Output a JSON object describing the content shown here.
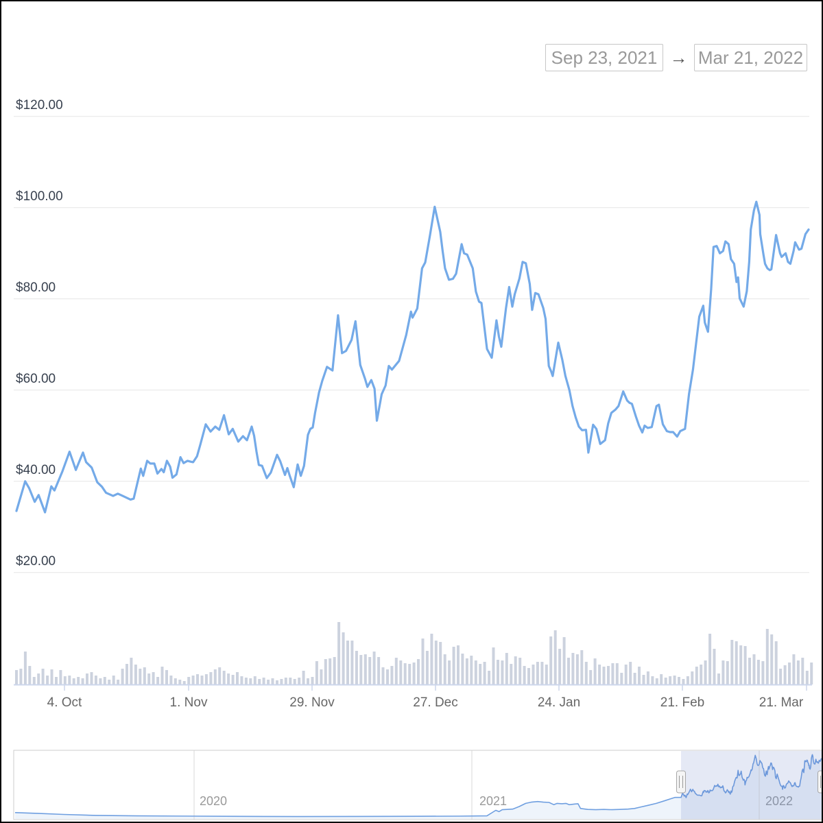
{
  "toolbar": {
    "date_from": "Sep 23, 2021",
    "date_to": "Mar 21, 2022",
    "arrow": "→"
  },
  "colors": {
    "price_line": "#74aae8",
    "volume_bar": "#ccd2de",
    "gridline": "#e6e6e6",
    "axis_line": "#ccd6eb",
    "y_label": "#37404e",
    "x_label": "#666666",
    "muted_label": "#999999",
    "nav_line": "#6f9fe0",
    "nav_area_fill": "rgba(124,168,224,0.13)",
    "nav_selection_fill": "rgba(91,119,190,0.16)",
    "handle_fill": "#f5f5f5",
    "handle_border": "#a6a6a6",
    "datebox_border": "#c6c6c6",
    "datebox_text": "#999999"
  },
  "chart_data": {
    "type": "line",
    "title": "",
    "subtitle": "",
    "legend": "none",
    "grid": "horizontal",
    "visible_range": {
      "from": "Sep 23, 2021",
      "to": "Mar 21, 2022"
    },
    "price_axis": {
      "unit": "USD",
      "tick_labels": [
        "$20.00",
        "$40.00",
        "$60.00",
        "$80.00",
        "$100.00",
        "$120.00"
      ],
      "tick_values": [
        20,
        40,
        60,
        80,
        100,
        120
      ],
      "min": 20,
      "max": 120
    },
    "x_axis": {
      "tick_labels": [
        "4. Oct",
        "1. Nov",
        "29. Nov",
        "27. Dec",
        "24. Jan",
        "21. Feb",
        "21. Mar"
      ]
    },
    "series": [
      {
        "name": "price",
        "unit": "USD",
        "note": "points are [fraction_of_visible_range, price_usd]; range Sep 23 2021 - Mar 21 2022",
        "points": [
          [
            0,
            33.5
          ],
          [
            0.011,
            40
          ],
          [
            0.016,
            38.5
          ],
          [
            0.023,
            35.5
          ],
          [
            0.028,
            37
          ],
          [
            0.036,
            33.2
          ],
          [
            0.044,
            38.9
          ],
          [
            0.048,
            38
          ],
          [
            0.058,
            42.2
          ],
          [
            0.067,
            46.5
          ],
          [
            0.075,
            42.5
          ],
          [
            0.079,
            44.2
          ],
          [
            0.084,
            46.3
          ],
          [
            0.088,
            44.2
          ],
          [
            0.095,
            43
          ],
          [
            0.102,
            39.8
          ],
          [
            0.108,
            38.8
          ],
          [
            0.113,
            37.5
          ],
          [
            0.122,
            36.8
          ],
          [
            0.128,
            37.3
          ],
          [
            0.133,
            36.9
          ],
          [
            0.144,
            36
          ],
          [
            0.148,
            36.2
          ],
          [
            0.157,
            42.8
          ],
          [
            0.16,
            41.2
          ],
          [
            0.165,
            44.5
          ],
          [
            0.169,
            43.9
          ],
          [
            0.174,
            43.9
          ],
          [
            0.178,
            41.7
          ],
          [
            0.183,
            42.7
          ],
          [
            0.186,
            42
          ],
          [
            0.19,
            44.5
          ],
          [
            0.194,
            43.2
          ],
          [
            0.197,
            40.8
          ],
          [
            0.202,
            41.5
          ],
          [
            0.207,
            45.3
          ],
          [
            0.211,
            44
          ],
          [
            0.216,
            44.5
          ],
          [
            0.22,
            44.3
          ],
          [
            0.223,
            44.2
          ],
          [
            0.228,
            45.5
          ],
          [
            0.232,
            48
          ],
          [
            0.239,
            52.5
          ],
          [
            0.245,
            50.9
          ],
          [
            0.251,
            52
          ],
          [
            0.256,
            51.3
          ],
          [
            0.262,
            54.5
          ],
          [
            0.268,
            50.3
          ],
          [
            0.273,
            51.5
          ],
          [
            0.28,
            48.7
          ],
          [
            0.286,
            49.9
          ],
          [
            0.291,
            49
          ],
          [
            0.297,
            52
          ],
          [
            0.3,
            50
          ],
          [
            0.303,
            46.5
          ],
          [
            0.306,
            43.6
          ],
          [
            0.31,
            43.4
          ],
          [
            0.316,
            40.7
          ],
          [
            0.321,
            41.9
          ],
          [
            0.329,
            45.8
          ],
          [
            0.333,
            44.4
          ],
          [
            0.339,
            41.4
          ],
          [
            0.342,
            42.9
          ],
          [
            0.345,
            41.2
          ],
          [
            0.35,
            38.7
          ],
          [
            0.355,
            43.7
          ],
          [
            0.359,
            41.2
          ],
          [
            0.363,
            43.4
          ],
          [
            0.368,
            50.2
          ],
          [
            0.371,
            51.5
          ],
          [
            0.374,
            51.8
          ],
          [
            0.377,
            55
          ],
          [
            0.382,
            59.5
          ],
          [
            0.386,
            62
          ],
          [
            0.392,
            65.1
          ],
          [
            0.399,
            64.3
          ],
          [
            0.406,
            76.4
          ],
          [
            0.411,
            68.1
          ],
          [
            0.416,
            68.6
          ],
          [
            0.423,
            71
          ],
          [
            0.428,
            75.1
          ],
          [
            0.434,
            65.5
          ],
          [
            0.44,
            62.5
          ],
          [
            0.443,
            60.7
          ],
          [
            0.448,
            62.2
          ],
          [
            0.452,
            60.3
          ],
          [
            0.455,
            53.3
          ],
          [
            0.461,
            59.1
          ],
          [
            0.466,
            61
          ],
          [
            0.47,
            65.3
          ],
          [
            0.474,
            64.5
          ],
          [
            0.483,
            66.4
          ],
          [
            0.492,
            72.1
          ],
          [
            0.498,
            77.2
          ],
          [
            0.5,
            75.9
          ],
          [
            0.506,
            77.9
          ],
          [
            0.512,
            86.7
          ],
          [
            0.516,
            88
          ],
          [
            0.522,
            93.9
          ],
          [
            0.528,
            100.2
          ],
          [
            0.535,
            94.7
          ],
          [
            0.538,
            90.5
          ],
          [
            0.541,
            86.7
          ],
          [
            0.546,
            84.2
          ],
          [
            0.551,
            84.4
          ],
          [
            0.555,
            85.5
          ],
          [
            0.562,
            92
          ],
          [
            0.565,
            90
          ],
          [
            0.569,
            89.7
          ],
          [
            0.576,
            86.7
          ],
          [
            0.58,
            81.6
          ],
          [
            0.584,
            79.4
          ],
          [
            0.587,
            79.1
          ],
          [
            0.594,
            69
          ],
          [
            0.6,
            67.1
          ],
          [
            0.606,
            75.3
          ],
          [
            0.609,
            71.8
          ],
          [
            0.612,
            69.5
          ],
          [
            0.618,
            78
          ],
          [
            0.622,
            82.6
          ],
          [
            0.626,
            78.3
          ],
          [
            0.629,
            81
          ],
          [
            0.635,
            84.5
          ],
          [
            0.639,
            88.1
          ],
          [
            0.643,
            87.8
          ],
          [
            0.648,
            83.3
          ],
          [
            0.651,
            77.6
          ],
          [
            0.655,
            81.3
          ],
          [
            0.659,
            81
          ],
          [
            0.665,
            78
          ],
          [
            0.668,
            75.6
          ],
          [
            0.672,
            65.3
          ],
          [
            0.675,
            64.1
          ],
          [
            0.677,
            63.1
          ],
          [
            0.684,
            70.4
          ],
          [
            0.689,
            66.7
          ],
          [
            0.693,
            63.1
          ],
          [
            0.698,
            60
          ],
          [
            0.702,
            56.5
          ],
          [
            0.706,
            54
          ],
          [
            0.71,
            52
          ],
          [
            0.714,
            51.2
          ],
          [
            0.719,
            51.3
          ],
          [
            0.722,
            46.3
          ],
          [
            0.728,
            52.4
          ],
          [
            0.732,
            51.5
          ],
          [
            0.737,
            48.2
          ],
          [
            0.743,
            49
          ],
          [
            0.747,
            52.7
          ],
          [
            0.751,
            55
          ],
          [
            0.756,
            55.7
          ],
          [
            0.76,
            56.5
          ],
          [
            0.766,
            59.7
          ],
          [
            0.771,
            57.7
          ],
          [
            0.774,
            57.2
          ],
          [
            0.777,
            57
          ],
          [
            0.782,
            54.2
          ],
          [
            0.786,
            52.2
          ],
          [
            0.79,
            50.7
          ],
          [
            0.793,
            52.2
          ],
          [
            0.797,
            51.7
          ],
          [
            0.802,
            51.9
          ],
          [
            0.808,
            56.5
          ],
          [
            0.811,
            56.8
          ],
          [
            0.816,
            52.5
          ],
          [
            0.821,
            51
          ],
          [
            0.825,
            50.8
          ],
          [
            0.829,
            50.8
          ],
          [
            0.834,
            49.8
          ],
          [
            0.838,
            51
          ],
          [
            0.844,
            51.5
          ],
          [
            0.849,
            59.1
          ],
          [
            0.854,
            64.5
          ],
          [
            0.858,
            70.3
          ],
          [
            0.862,
            76.1
          ],
          [
            0.867,
            78.5
          ],
          [
            0.869,
            74.8
          ],
          [
            0.873,
            72.8
          ],
          [
            0.877,
            82.1
          ],
          [
            0.88,
            91.4
          ],
          [
            0.884,
            91.6
          ],
          [
            0.888,
            90
          ],
          [
            0.892,
            90.5
          ],
          [
            0.895,
            92.6
          ],
          [
            0.899,
            92
          ],
          [
            0.902,
            88.7
          ],
          [
            0.906,
            87.7
          ],
          [
            0.909,
            83.7
          ],
          [
            0.911,
            84.7
          ],
          [
            0.913,
            80.1
          ],
          [
            0.918,
            78.3
          ],
          [
            0.922,
            81.7
          ],
          [
            0.925,
            88.1
          ],
          [
            0.927,
            95.2
          ],
          [
            0.931,
            99.4
          ],
          [
            0.934,
            101.3
          ],
          [
            0.938,
            98.4
          ],
          [
            0.939,
            94.2
          ],
          [
            0.943,
            89.7
          ],
          [
            0.945,
            87.7
          ],
          [
            0.948,
            86.7
          ],
          [
            0.951,
            86.3
          ],
          [
            0.953,
            86.5
          ],
          [
            0.959,
            94
          ],
          [
            0.964,
            90
          ],
          [
            0.966,
            89.2
          ],
          [
            0.971,
            90
          ],
          [
            0.974,
            88.1
          ],
          [
            0.977,
            87.7
          ],
          [
            0.981,
            90.5
          ],
          [
            0.983,
            92.4
          ],
          [
            0.988,
            90.8
          ],
          [
            0.991,
            91
          ],
          [
            0.996,
            94.2
          ],
          [
            1,
            95.2
          ]
        ]
      },
      {
        "name": "volume",
        "unit": "relative (no axis labels visible, 0-100 scale)",
        "values": [
          21,
          23,
          48,
          27,
          11,
          16,
          23,
          13,
          22,
          11,
          21,
          12,
          13,
          9,
          11,
          9,
          16,
          18,
          13,
          9,
          11,
          7,
          13,
          7,
          23,
          30,
          39,
          29,
          23,
          25,
          16,
          18,
          11,
          26,
          21,
          13,
          9,
          7,
          5,
          11,
          13,
          15,
          13,
          15,
          18,
          22,
          25,
          20,
          16,
          14,
          18,
          12,
          10,
          9,
          12,
          8,
          10,
          7,
          9,
          6,
          8,
          10,
          10,
          8,
          10,
          20,
          9,
          11,
          34,
          22,
          37,
          38,
          40,
          91,
          76,
          64,
          64,
          49,
          43,
          44,
          40,
          48,
          40,
          25,
          22,
          27,
          39,
          35,
          31,
          30,
          32,
          37,
          67,
          49,
          74,
          64,
          62,
          44,
          35,
          55,
          57,
          45,
          38,
          42,
          35,
          30,
          33,
          20,
          54,
          36,
          35,
          46,
          30,
          41,
          39,
          27,
          24,
          29,
          33,
          33,
          29,
          70,
          79,
          52,
          69,
          39,
          46,
          44,
          50,
          33,
          21,
          38,
          29,
          26,
          27,
          31,
          31,
          17,
          29,
          33,
          17,
          26,
          14,
          19,
          12,
          9,
          15,
          10,
          12,
          13,
          11,
          8,
          12,
          19,
          26,
          29,
          35,
          74,
          52,
          16,
          35,
          34,
          65,
          63,
          57,
          56,
          39,
          44,
          36,
          34,
          81,
          73,
          63,
          23,
          28,
          32,
          44,
          35,
          39,
          20,
          32
        ]
      }
    ],
    "navigator": {
      "year_labels": [
        "2020",
        "2021",
        "2022"
      ],
      "selected_from": "Sep 23, 2021",
      "selected_to": "Mar 21, 2022",
      "note": "history points are [fraction_of_navigator_width, price_usd]",
      "history_points": [
        [
          0,
          9.5
        ],
        [
          0.03,
          8
        ],
        [
          0.06,
          6.5
        ],
        [
          0.1,
          5
        ],
        [
          0.15,
          4.2
        ],
        [
          0.222,
          3.8
        ],
        [
          0.28,
          3.5
        ],
        [
          0.35,
          3.2
        ],
        [
          0.42,
          3.4
        ],
        [
          0.5,
          3.6
        ],
        [
          0.55,
          3.8
        ],
        [
          0.585,
          4.2
        ],
        [
          0.596,
          13
        ],
        [
          0.6,
          11
        ],
        [
          0.604,
          14
        ],
        [
          0.61,
          14.5
        ],
        [
          0.617,
          15
        ],
        [
          0.625,
          19
        ],
        [
          0.633,
          24
        ],
        [
          0.64,
          26
        ],
        [
          0.648,
          27
        ],
        [
          0.655,
          26
        ],
        [
          0.662,
          25.5
        ],
        [
          0.668,
          22
        ],
        [
          0.672,
          24
        ],
        [
          0.678,
          23.5
        ],
        [
          0.683,
          24
        ],
        [
          0.687,
          22
        ],
        [
          0.694,
          23
        ],
        [
          0.698,
          23.5
        ],
        [
          0.701,
          16
        ],
        [
          0.71,
          14.5
        ],
        [
          0.72,
          14
        ],
        [
          0.73,
          14.5
        ],
        [
          0.74,
          14
        ],
        [
          0.75,
          14.5
        ],
        [
          0.76,
          15
        ],
        [
          0.768,
          16
        ],
        [
          0.775,
          18
        ],
        [
          0.785,
          21
        ],
        [
          0.795,
          24
        ],
        [
          0.805,
          28
        ],
        [
          0.812,
          31
        ],
        [
          0.818,
          33.5
        ]
      ]
    }
  }
}
